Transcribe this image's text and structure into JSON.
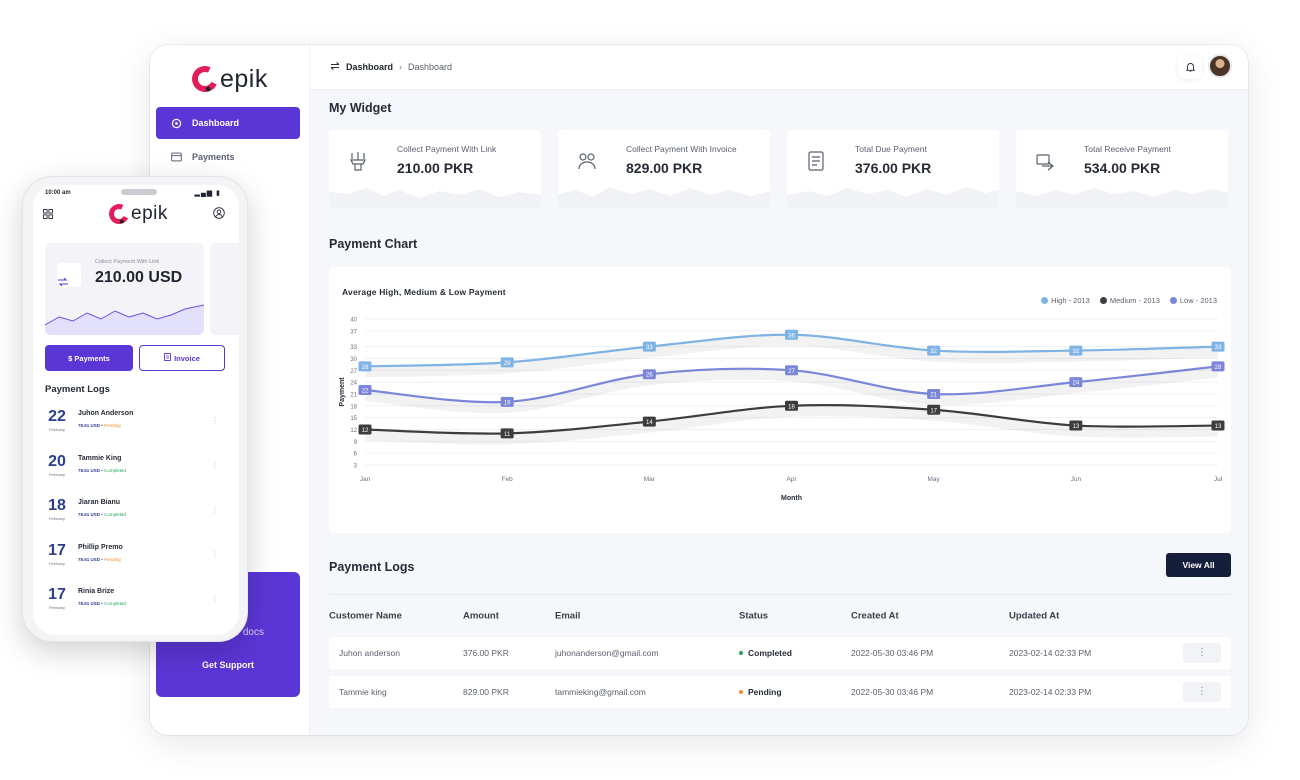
{
  "brand": {
    "name": "epik"
  },
  "sidebar": {
    "items": [
      {
        "label": "Dashboard",
        "icon": "dashboard-icon",
        "active": true
      },
      {
        "label": "Payments",
        "icon": "payments-icon",
        "active": false
      }
    ],
    "support_docs": "r docs",
    "support_button": "Get Support"
  },
  "breadcrumb": {
    "parent": "Dashboard",
    "current": "Dashboard"
  },
  "widgets_title": "My Widget",
  "widgets": [
    {
      "label": "Collect Payment With Link",
      "value": "210.00 PKR",
      "icon": "link-payment-icon"
    },
    {
      "label": "Collect Payment With Invoice",
      "value": "829.00 PKR",
      "icon": "invoice-payment-icon"
    },
    {
      "label": "Total Due Payment",
      "value": "376.00 PKR",
      "icon": "due-payment-icon"
    },
    {
      "label": "Total Receive Payment",
      "value": "534.00 PKR",
      "icon": "receive-payment-icon"
    }
  ],
  "chart_section_title": "Payment Chart",
  "chart_data": {
    "type": "line",
    "title": "Average High, Medium & Low Payment",
    "xlabel": "Month",
    "ylabel": "Payment",
    "categories": [
      "Jan",
      "Feb",
      "Mar",
      "Apr",
      "May",
      "Jun",
      "Jul"
    ],
    "yticks": [
      3,
      6,
      9,
      12,
      15,
      18,
      21,
      24,
      27,
      30,
      33,
      37,
      40
    ],
    "ylim": [
      3,
      40
    ],
    "legend_position": "top-right",
    "series": [
      {
        "name": "High - 2013",
        "color": "#7fb3e3",
        "values": [
          28,
          29,
          33,
          36,
          32,
          32,
          33
        ]
      },
      {
        "name": "Medium - 2013",
        "color": "#3d3d3d",
        "values": [
          12,
          11,
          14,
          18,
          17,
          13,
          13
        ]
      },
      {
        "name": "Low - 2013",
        "color": "#7b86d8",
        "values": [
          22,
          19,
          26,
          27,
          21,
          24,
          28
        ]
      }
    ]
  },
  "logs": {
    "title": "Payment Logs",
    "view_all": "View All",
    "columns": [
      "Customer Name",
      "Amount",
      "Email",
      "Status",
      "Created At",
      "Updated At"
    ],
    "rows": [
      {
        "name": "Juhon anderson",
        "amount": "376.00 PKR",
        "email": "juhonanderson@gmail.com",
        "status": "Completed",
        "status_color": "#22a55a",
        "created": "2022-05-30 03:46 PM",
        "updated": "2023-02-14 02:33 PM"
      },
      {
        "name": "Tammie king",
        "amount": "829.00 PKR",
        "email": "tammieking@gmail.com",
        "status": "Pending",
        "status_color": "#f28c28",
        "created": "2022-05-30 03:46 PM",
        "updated": "2023-02-14 02:33 PM"
      }
    ]
  },
  "phone": {
    "time": "10:00 am",
    "card_label": "Collect Payment With Link",
    "card_value": "210.00 USD",
    "payments_button": "$ Payments",
    "invoice_button": "Invoice",
    "logs_title": "Payment Logs",
    "items": [
      {
        "day": "22",
        "month": "February",
        "name": "Juhon Anderson",
        "amount": "78.61 USD",
        "status": "Pending",
        "status_color": "#f28c28"
      },
      {
        "day": "20",
        "month": "February",
        "name": "Tammie King",
        "amount": "78.61 USD",
        "status": "Completed",
        "status_color": "#22a55a"
      },
      {
        "day": "18",
        "month": "February",
        "name": "Jiaran Bianu",
        "amount": "78.61 USD",
        "status": "Completed",
        "status_color": "#22a55a"
      },
      {
        "day": "17",
        "month": "February",
        "name": "Phillip Premo",
        "amount": "78.61 USD",
        "status": "Pending",
        "status_color": "#f28c28"
      },
      {
        "day": "17",
        "month": "February",
        "name": "Rinia Brize",
        "amount": "78.61 USD",
        "status": "Completed",
        "status_color": "#22a55a"
      }
    ]
  }
}
